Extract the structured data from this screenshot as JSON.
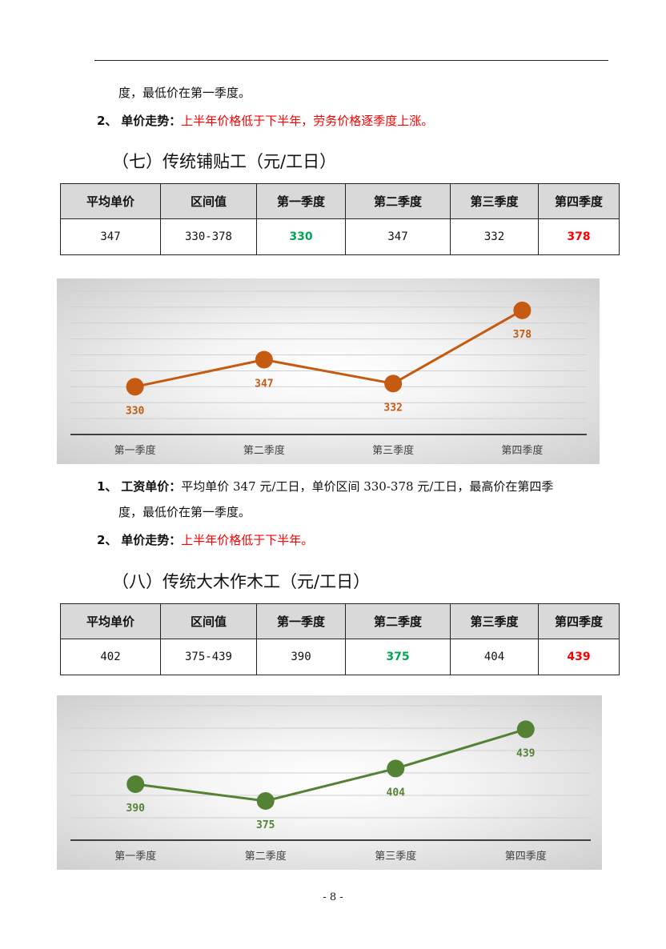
{
  "intro": {
    "line1": "度，最低价在第一季度。",
    "line2_num": "2、",
    "line2_label": "单价走势：",
    "line2_text": "上半年价格低于下半年，劳务价格逐季度上涨。"
  },
  "section7": {
    "heading": "（七）传统铺贴工（元/工日）",
    "headers": [
      "平均单价",
      "区间值",
      "第一季度",
      "第二季度",
      "第三季度",
      "第四季度"
    ],
    "row": [
      "347",
      "330-378",
      "330",
      "347",
      "332",
      "378"
    ],
    "chart_data": {
      "type": "line",
      "categories": [
        "第一季度",
        "第二季度",
        "第三季度",
        "第四季度"
      ],
      "values": [
        330,
        347,
        332,
        378
      ],
      "ylim": [
        300,
        390
      ],
      "color": "#c55a11",
      "grid": true
    },
    "notes": {
      "n1_num": "1、",
      "n1_label": "工资单价：",
      "n1_text": "平均单价 347 元/工日，单价区间 330-378 元/工日，最高价在第四季",
      "n1_text2": "度，最低价在第一季度。",
      "n2_num": "2、",
      "n2_label": "单价走势：",
      "n2_text": "上半年价格低于下半年。"
    }
  },
  "section8": {
    "heading": "（八）传统大木作木工（元/工日）",
    "headers": [
      "平均单价",
      "区间值",
      "第一季度",
      "第二季度",
      "第三季度",
      "第四季度"
    ],
    "row": [
      "402",
      "375-439",
      "390",
      "375",
      "404",
      "439"
    ],
    "chart_data": {
      "type": "line",
      "categories": [
        "第一季度",
        "第二季度",
        "第三季度",
        "第四季度"
      ],
      "values": [
        390,
        375,
        404,
        439
      ],
      "ylim": [
        340,
        460
      ],
      "color": "#548235",
      "grid": true
    }
  },
  "footer": {
    "page": "- 8 -"
  }
}
